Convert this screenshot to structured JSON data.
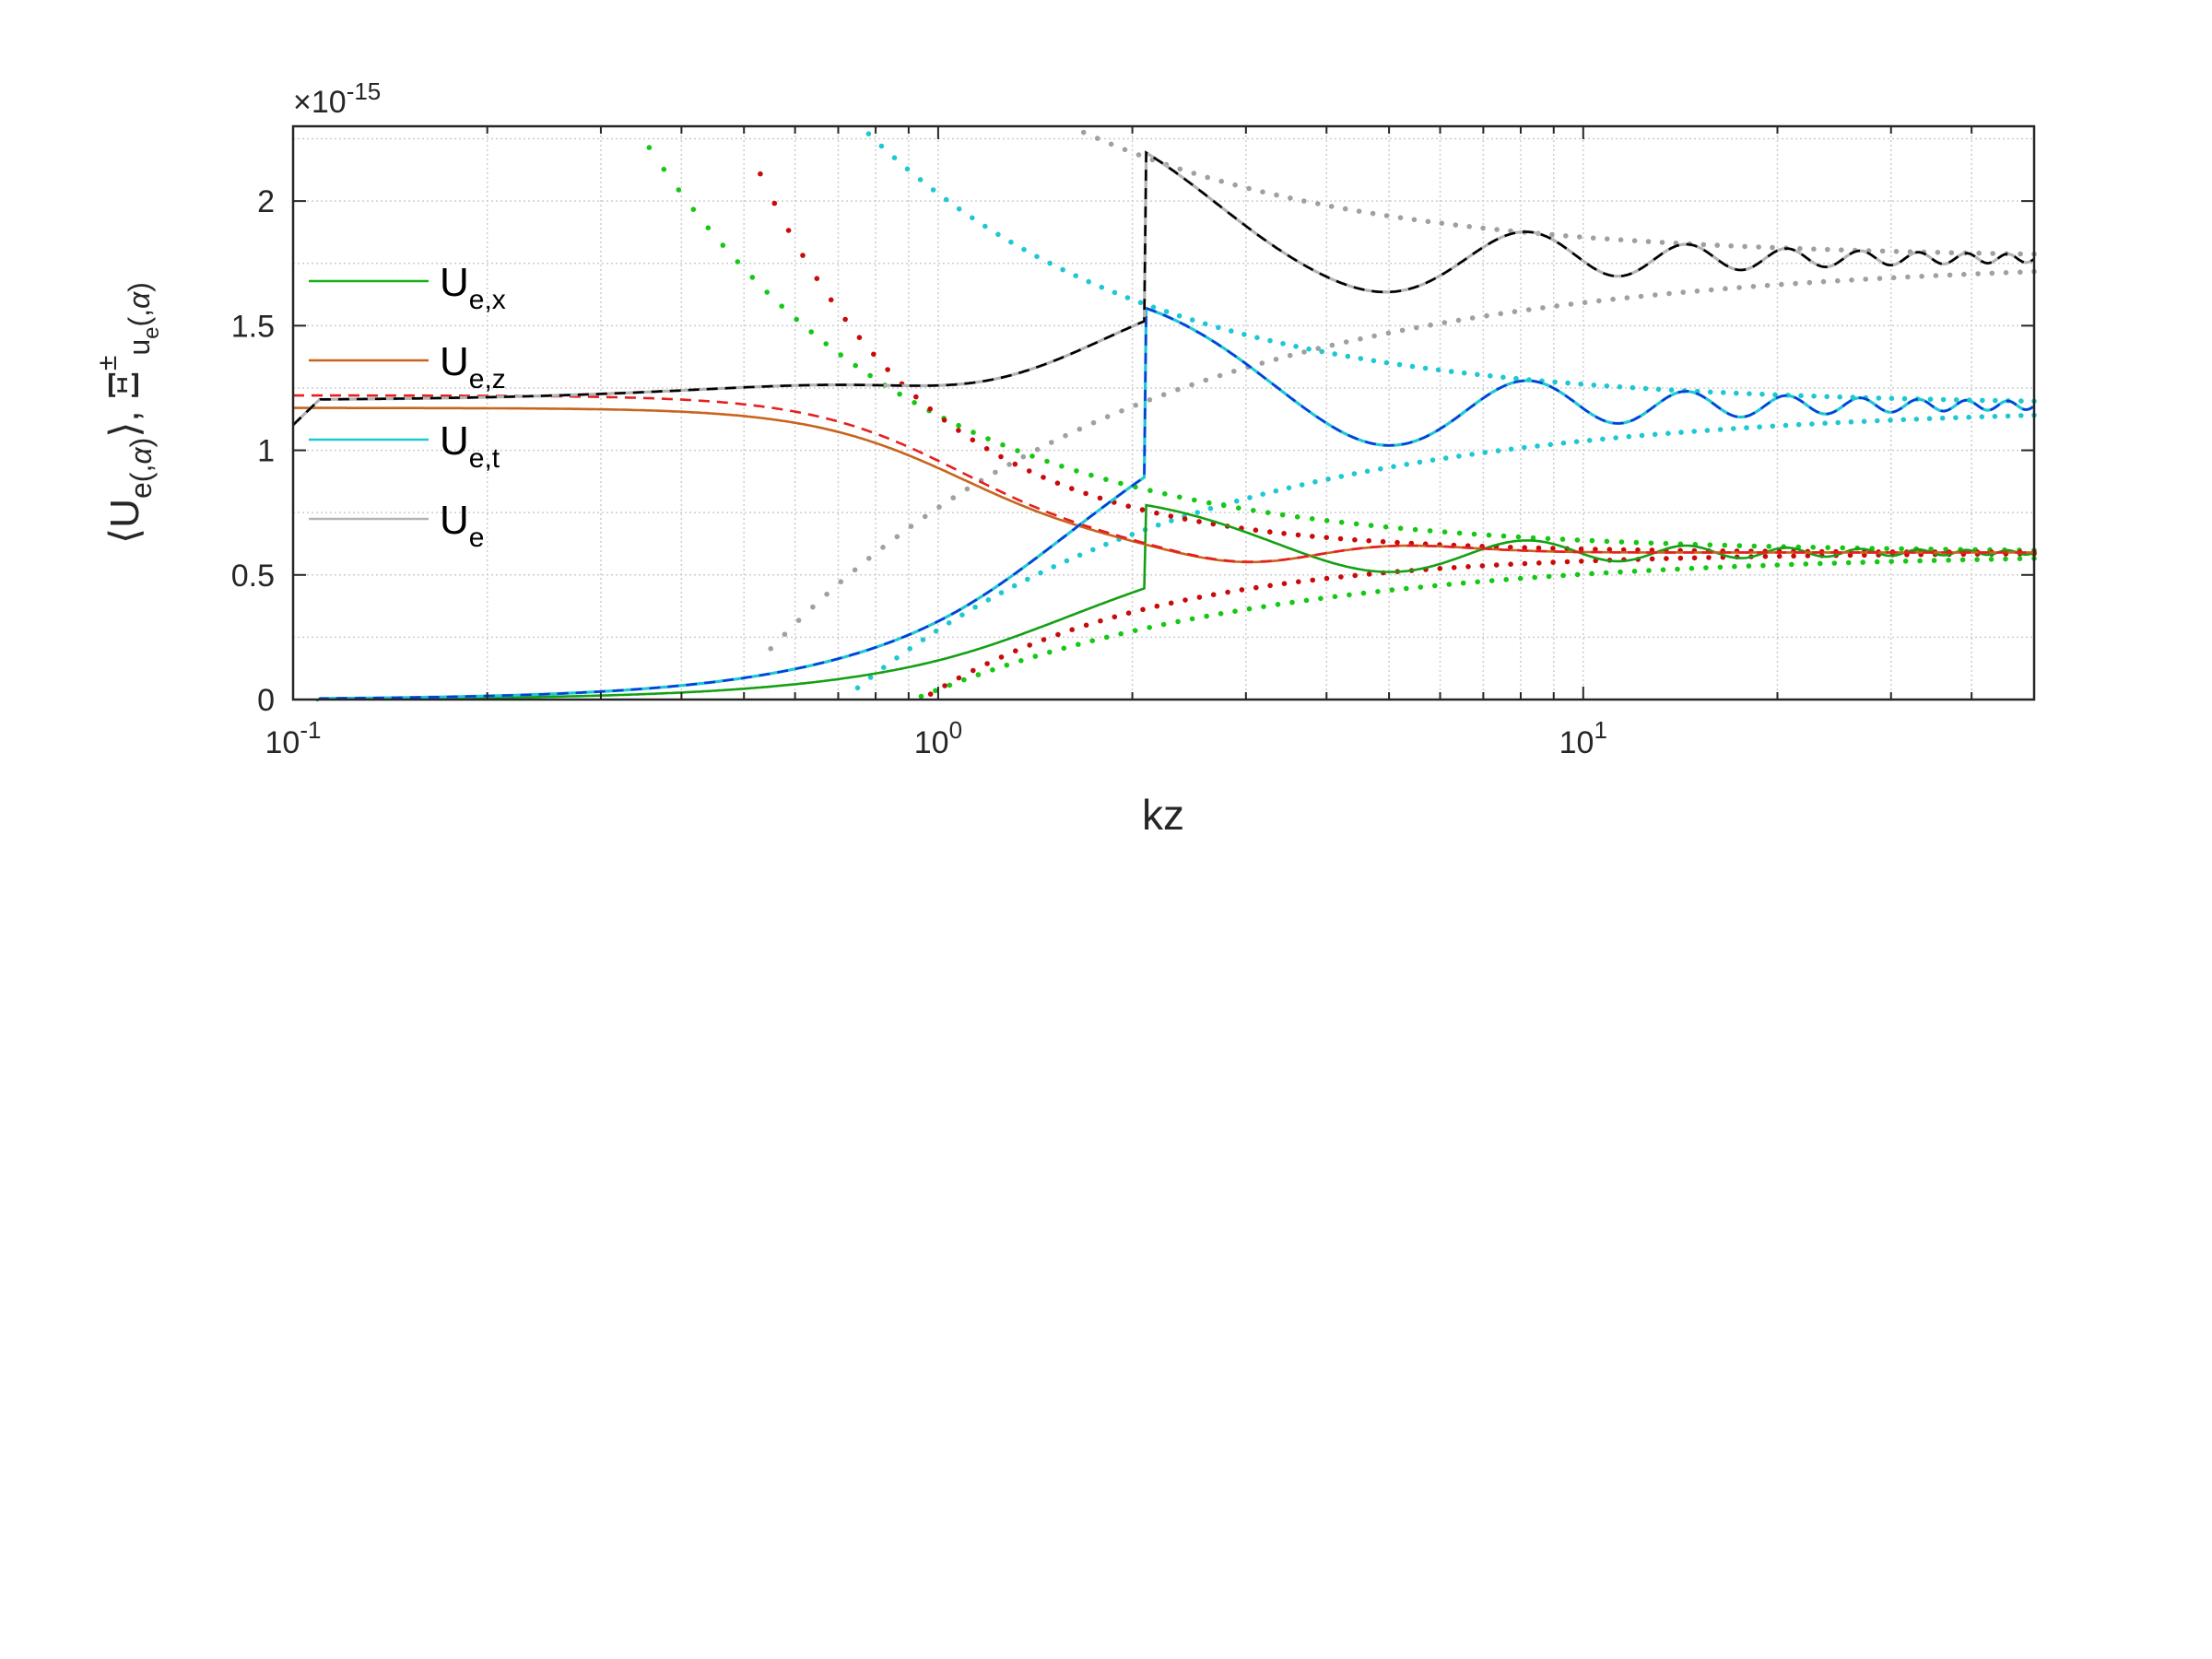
{
  "chart_data": {
    "type": "line",
    "xlabel": "kz",
    "ylabel": "⟨U_e(,α)⟩, Ξ^±_{u_e(,α)}",
    "x_scale": "log",
    "xlim": [
      0.1,
      50
    ],
    "ylim": [
      0,
      2.3
    ],
    "y_exponent_label": "×10",
    "y_exponent": "-15",
    "x_ticks": [
      {
        "base": "10",
        "exp": "-1",
        "value": 0.1
      },
      {
        "base": "10",
        "exp": "0",
        "value": 1
      },
      {
        "base": "10",
        "exp": "1",
        "value": 10
      }
    ],
    "y_ticks": [
      "0",
      "0.5",
      "1",
      "1.5",
      "2"
    ],
    "y_tick_values": [
      0,
      0.5,
      1,
      1.5,
      2
    ],
    "grid": true,
    "legend_position": "left",
    "legend": [
      {
        "base": "U",
        "sub": "e,x",
        "color": "#14b014"
      },
      {
        "base": "U",
        "sub": "e,z",
        "color": "#c8641e"
      },
      {
        "base": "U",
        "sub": "e,t",
        "color": "#1ec8d2"
      },
      {
        "base": "U",
        "sub": "e",
        "color": "#b4b4b4"
      }
    ],
    "series": [
      {
        "name": "U_e,x",
        "style": "solid",
        "color": "#14a014",
        "value_at_small_kz": 0.01,
        "peak": {
          "kz": 2.1,
          "value": 0.78
        },
        "limit": 0.59
      },
      {
        "name": "U_e,z",
        "style": "solid",
        "color": "#c8641e",
        "value_at_small_kz": 1.17,
        "limit": 0.59
      },
      {
        "name": "U_e,z",
        "style": "dashed",
        "color": "#e61e1e",
        "value_at_small_kz": 1.22,
        "limit": 0.59
      },
      {
        "name": "U_e,t",
        "style": "solid",
        "color": "#1ec8d2",
        "value_at_small_kz": 0.01,
        "peak": {
          "kz": 2.1,
          "value": 1.57
        },
        "limit": 1.18
      },
      {
        "name": "U_e,t",
        "style": "dashed",
        "color": "#0a3cdc",
        "value_at_small_kz": 0.01,
        "peak": {
          "kz": 2.1,
          "value": 1.57
        },
        "limit": 1.18
      },
      {
        "name": "U_e",
        "style": "solid",
        "color": "#b4b4b4",
        "value_at_small_kz": 1.2,
        "peak": {
          "kz": 1.9,
          "value": 2.22
        },
        "limit": 1.77
      },
      {
        "name": "U_e",
        "style": "dashed",
        "color": "#000000",
        "value_at_small_kz": 1.2,
        "peak": {
          "kz": 1.9,
          "value": 2.22
        },
        "limit": 1.77
      },
      {
        "style": "dotted",
        "color": "#14c814",
        "envelope_of": "U_e,x",
        "limit": 0.59
      },
      {
        "style": "dotted",
        "color": "#c80a0a",
        "envelope_of": "U_e,z",
        "limit": 0.59
      },
      {
        "style": "dotted",
        "color": "#1ec8d2",
        "envelope_of": "U_e,t",
        "limit": 1.18
      },
      {
        "style": "dotted",
        "color": "#a0a0a0",
        "envelope_of": "U_e",
        "limit": 1.77
      }
    ]
  }
}
